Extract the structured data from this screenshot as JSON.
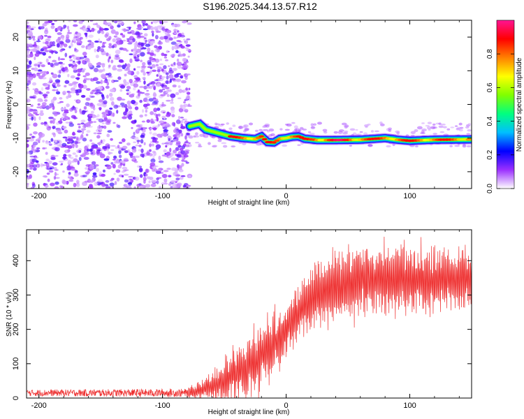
{
  "title": "S196.2025.344.13.57.R12",
  "chart_data": [
    {
      "type": "heatmap",
      "name": "spectrogram",
      "xlabel": "Height of straight line (km)",
      "ylabel": "Frequency (Hz)",
      "xlim": [
        -210,
        150
      ],
      "ylim": [
        -25,
        25
      ],
      "xticks": [
        -200,
        -100,
        0,
        100
      ],
      "yticks": [
        -20,
        -10,
        0,
        10,
        20
      ],
      "noise_region_x": [
        -210,
        -78
      ],
      "signal_track": [
        [
          -78,
          -6.5
        ],
        [
          -70,
          -5.8
        ],
        [
          -65,
          -7.5
        ],
        [
          -55,
          -8.5
        ],
        [
          -45,
          -9.5
        ],
        [
          -35,
          -10.0
        ],
        [
          -25,
          -10.3
        ],
        [
          -20,
          -9.5
        ],
        [
          -15,
          -11.2
        ],
        [
          -10,
          -11.3
        ],
        [
          -5,
          -10.2
        ],
        [
          0,
          -10.0
        ],
        [
          5,
          -9.6
        ],
        [
          10,
          -9.5
        ],
        [
          15,
          -10.2
        ],
        [
          25,
          -10.6
        ],
        [
          40,
          -10.6
        ],
        [
          60,
          -10.5
        ],
        [
          80,
          -10.0
        ],
        [
          90,
          -10.5
        ],
        [
          100,
          -10.8
        ],
        [
          120,
          -10.5
        ],
        [
          150,
          -10.4
        ]
      ],
      "colorbar": {
        "label": "Normalized spectral amplitude",
        "range": [
          0,
          1
        ],
        "ticks": [
          "0.0",
          "0.2",
          "0.4",
          "0.6",
          "0.8"
        ],
        "tick_values": [
          0.0,
          0.2,
          0.4,
          0.6,
          0.8
        ],
        "colors": [
          "#ffffff",
          "#9b30ff",
          "#0000ff",
          "#00bfff",
          "#00ff80",
          "#80ff00",
          "#ffff00",
          "#ff8000",
          "#ff0000",
          "#ff1493"
        ]
      }
    },
    {
      "type": "line",
      "name": "snr",
      "xlabel": "Height of straight line (km)",
      "ylabel": "SNR (10 * v/v)",
      "xlim": [
        -210,
        150
      ],
      "ylim": [
        0,
        490
      ],
      "xticks": [
        -200,
        -100,
        0,
        100
      ],
      "yticks": [
        0,
        100,
        200,
        300,
        400
      ],
      "color": "#ee3030",
      "envelope": {
        "x": [
          -210,
          -80,
          -72,
          -65,
          -55,
          -45,
          -35,
          -25,
          -15,
          -5,
          0,
          5,
          15,
          25,
          35,
          50,
          70,
          90,
          110,
          130,
          150
        ],
        "base": [
          15,
          15,
          20,
          30,
          40,
          60,
          80,
          110,
          140,
          170,
          200,
          225,
          265,
          300,
          320,
          335,
          345,
          345,
          345,
          345,
          345
        ],
        "amp": [
          12,
          15,
          30,
          40,
          60,
          80,
          100,
          110,
          110,
          110,
          100,
          90,
          95,
          110,
          120,
          125,
          120,
          115,
          110,
          105,
          100
        ]
      }
    }
  ]
}
